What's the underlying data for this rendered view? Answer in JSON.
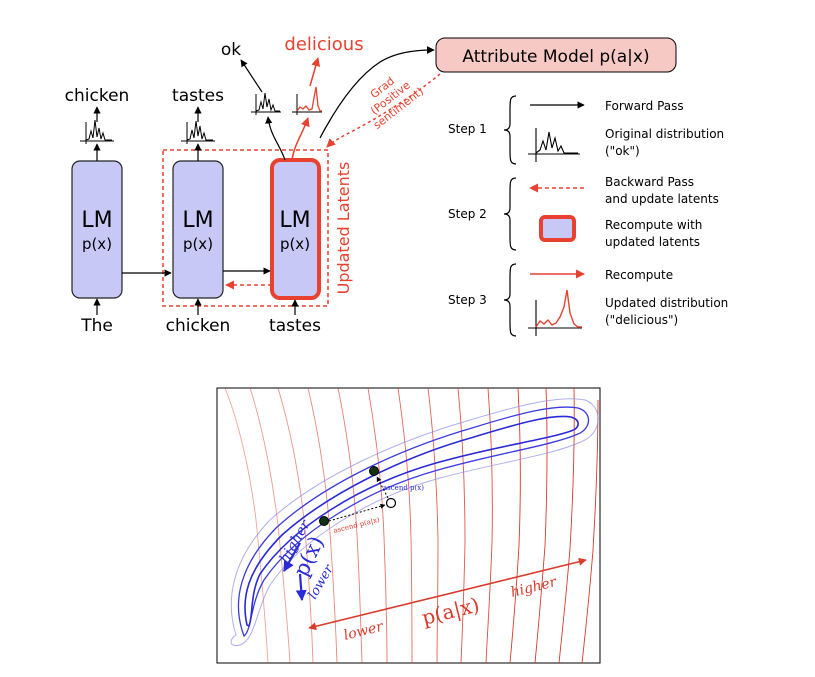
{
  "top_diagram": {
    "lm_blocks": [
      {
        "title": "LM",
        "subtitle": "p(x)"
      },
      {
        "title": "LM",
        "subtitle": "p(x)"
      },
      {
        "title": "LM",
        "subtitle": "p(x)"
      }
    ],
    "inputs": [
      "The",
      "chicken",
      "tastes"
    ],
    "outputs": [
      "chicken",
      "tastes",
      "ok"
    ],
    "output_red": "delicious",
    "updated_latents_label": "Updated Latents",
    "attribute_model_label": "Attribute Model p(a|x)",
    "grad_label_lines": [
      "Grad",
      "(Positive",
      "sentiment)"
    ],
    "colors": {
      "block_fill": "#c8c8f6",
      "red": "#e8412f",
      "attr_fill": "#f7c9c5"
    }
  },
  "legend": {
    "steps": [
      {
        "label": "Step 1",
        "rows": [
          {
            "icon": "black-arrow-icon",
            "lines": [
              "Forward Pass"
            ]
          },
          {
            "icon": "black-distribution-icon",
            "lines": [
              "Original distribution",
              "(\"ok\")"
            ]
          }
        ]
      },
      {
        "label": "Step 2",
        "rows": [
          {
            "icon": "red-dashed-arrow-icon",
            "lines": [
              "Backward Pass",
              "and update latents"
            ]
          },
          {
            "icon": "red-block-icon",
            "lines": [
              "Recompute with",
              "updated latents"
            ]
          }
        ]
      },
      {
        "label": "Step 3",
        "rows": [
          {
            "icon": "red-arrow-icon",
            "lines": [
              "Recompute"
            ]
          },
          {
            "icon": "red-distribution-icon",
            "lines": [
              "Updated distribution",
              "(\"delicious\")"
            ]
          }
        ]
      }
    ]
  },
  "bottom_diagram": {
    "higher_left": "higher",
    "px_label": "p(x)",
    "lower_left": "lower",
    "ascend_px": "ascend p(x)",
    "ascend_pax": "ascend p(a|x)",
    "lower_bottom": "lower",
    "pax_label": "p(a|x)",
    "higher_bottom": "higher",
    "colors": {
      "blue": "#2a2ad8",
      "red": "#d93a2b"
    }
  }
}
